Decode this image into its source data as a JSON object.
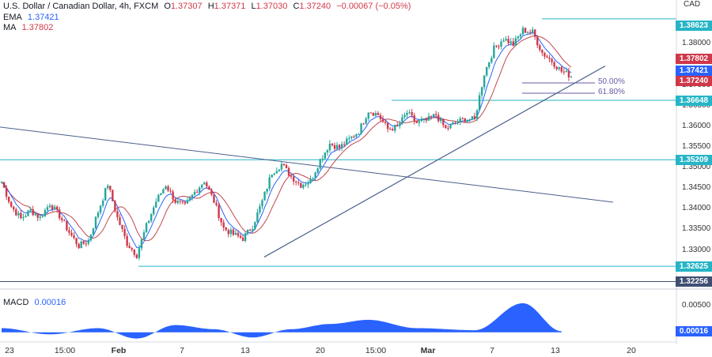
{
  "header": {
    "symbol": "U.S. Dollar / Canadian Dollar, 4h, FXCM",
    "open_label": "O",
    "open": "1.37307",
    "high_label": "H",
    "high": "1.37371",
    "low_label": "L",
    "low": "1.37030",
    "close_label": "C",
    "close": "1.37240",
    "change": "−0.00067 (−0.05%)",
    "ema_label": "EMA",
    "ema_value": "1.37421",
    "ma_label": "MA",
    "ma_value": "1.37802",
    "macd_label": "MACD",
    "macd_value": "0.00016"
  },
  "currency": "CAD",
  "colors": {
    "up": "#26a69a",
    "down": "#d0384a",
    "ema": "#2962ff",
    "ma": "#c0464e",
    "level": "#26b5c7",
    "trend": "#4a5f8c",
    "macd": "#2962ff"
  },
  "price_boxes": [
    {
      "value": "1.38623",
      "color": "#26b5c7"
    },
    {
      "value": "1.37802",
      "color": "#d0384a"
    },
    {
      "value": "1.37421",
      "color": "#2962ff"
    },
    {
      "value": "1.37240",
      "color": "#d0384a"
    },
    {
      "value": "1.36648",
      "color": "#26b5c7"
    },
    {
      "value": "1.35209",
      "color": "#26b5c7"
    },
    {
      "value": "1.32625",
      "color": "#26b5c7"
    },
    {
      "value": "1.32256",
      "color": "#3f4f73"
    }
  ],
  "macd_box": {
    "value": "0.00016",
    "color": "#2962ff"
  },
  "y_ticks": [
    "1.38000",
    "1.37000",
    "1.36500",
    "1.36000",
    "1.35500",
    "1.35000",
    "1.34500",
    "1.34000",
    "1.33500",
    "1.33000"
  ],
  "macd_ticks": [
    "0.00500",
    "0.00000"
  ],
  "x_ticks": [
    {
      "label": "23",
      "bold": false
    },
    {
      "label": "15:00",
      "bold": false
    },
    {
      "label": "Feb",
      "bold": true
    },
    {
      "label": "7",
      "bold": false
    },
    {
      "label": "13",
      "bold": false
    },
    {
      "label": "20",
      "bold": false
    },
    {
      "label": "15:00",
      "bold": false
    },
    {
      "label": "Mar",
      "bold": true
    },
    {
      "label": "7",
      "bold": false
    },
    {
      "label": "13",
      "bold": false
    },
    {
      "label": "20",
      "bold": false
    }
  ],
  "fib_labels": [
    "50.00%",
    "61.80%"
  ],
  "chart_data": {
    "type": "candlestick",
    "title": "U.S. Dollar / Canadian Dollar, 4h, FXCM",
    "ylim": [
      1.3215,
      1.3885
    ],
    "horizontal_levels": [
      1.38623,
      1.36648,
      1.35209,
      1.32625,
      1.32256
    ],
    "fib_levels": [
      {
        "label": "50.00%",
        "value": 1.3707
      },
      {
        "label": "61.80%",
        "value": 1.3682
      }
    ],
    "close_path": [
      [
        0,
        1.3467
      ],
      [
        4,
        1.3408
      ],
      [
        8,
        1.3378
      ],
      [
        12,
        1.3398
      ],
      [
        16,
        1.338
      ],
      [
        20,
        1.3415
      ],
      [
        24,
        1.3385
      ],
      [
        28,
        1.3345
      ],
      [
        32,
        1.3312
      ],
      [
        36,
        1.3325
      ],
      [
        40,
        1.3395
      ],
      [
        44,
        1.3462
      ],
      [
        48,
        1.338
      ],
      [
        52,
        1.3318
      ],
      [
        56,
        1.329
      ],
      [
        60,
        1.336
      ],
      [
        64,
        1.342
      ],
      [
        68,
        1.346
      ],
      [
        72,
        1.342
      ],
      [
        76,
        1.3408
      ],
      [
        80,
        1.3442
      ],
      [
        84,
        1.347
      ],
      [
        88,
        1.342
      ],
      [
        92,
        1.3355
      ],
      [
        96,
        1.334
      ],
      [
        100,
        1.333
      ],
      [
        104,
        1.336
      ],
      [
        108,
        1.342
      ],
      [
        112,
        1.349
      ],
      [
        116,
        1.351
      ],
      [
        120,
        1.348
      ],
      [
        124,
        1.346
      ],
      [
        128,
        1.347
      ],
      [
        132,
        1.352
      ],
      [
        136,
        1.356
      ],
      [
        140,
        1.355
      ],
      [
        144,
        1.357
      ],
      [
        148,
        1.359
      ],
      [
        152,
        1.364
      ],
      [
        156,
        1.363
      ],
      [
        160,
        1.3595
      ],
      [
        164,
        1.36
      ],
      [
        168,
        1.3635
      ],
      [
        172,
        1.361
      ],
      [
        176,
        1.3615
      ],
      [
        180,
        1.363
      ],
      [
        184,
        1.3595
      ],
      [
        188,
        1.361
      ],
      [
        192,
        1.362
      ],
      [
        196,
        1.3618
      ],
      [
        200,
        1.373
      ],
      [
        204,
        1.379
      ],
      [
        208,
        1.3815
      ],
      [
        212,
        1.38
      ],
      [
        216,
        1.3835
      ],
      [
        220,
        1.383
      ],
      [
        224,
        1.378
      ],
      [
        228,
        1.376
      ],
      [
        232,
        1.3735
      ],
      [
        236,
        1.3724
      ]
    ],
    "macd": [
      [
        0,
        0.0008
      ],
      [
        20,
        -0.0004
      ],
      [
        40,
        0.0008
      ],
      [
        56,
        -0.0012
      ],
      [
        72,
        0.0014
      ],
      [
        88,
        0.0006
      ],
      [
        104,
        -0.001
      ],
      [
        120,
        0.0006
      ],
      [
        136,
        0.0016
      ],
      [
        152,
        0.0024
      ],
      [
        172,
        0.0008
      ],
      [
        196,
        0.0004
      ],
      [
        216,
        0.0056
      ],
      [
        232,
        0.0002
      ]
    ]
  }
}
